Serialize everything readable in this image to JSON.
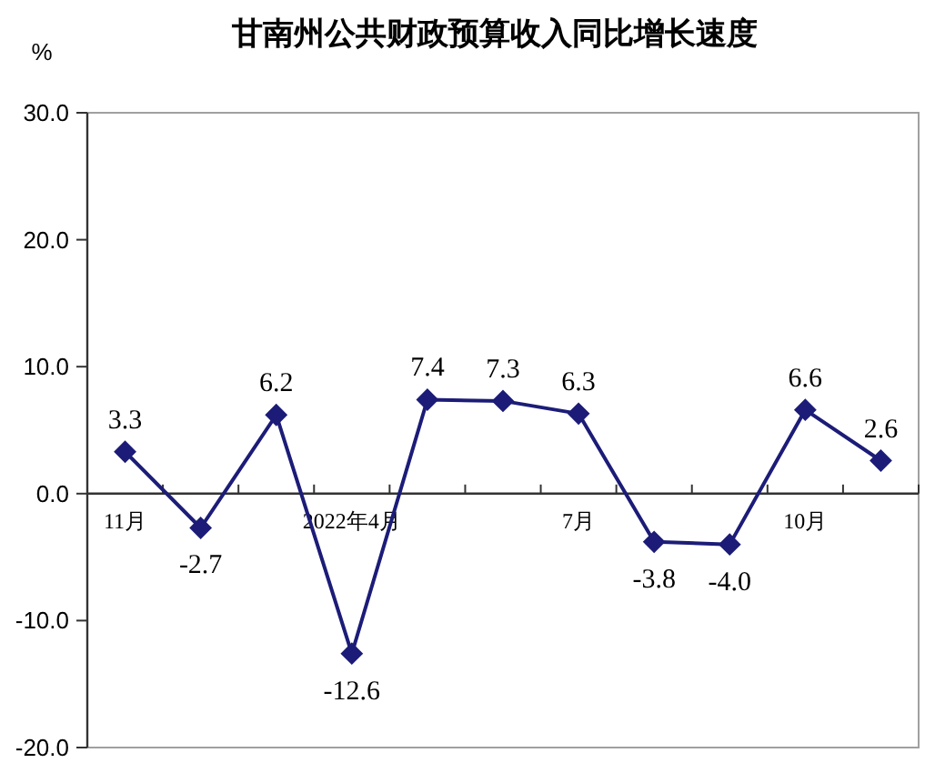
{
  "chart_data": {
    "type": "line",
    "title": "甘南州公共财政预算收入同比增长速度",
    "ylabel": "%",
    "categories": [
      "11月",
      null,
      null,
      "2022年4月",
      null,
      null,
      "7月",
      null,
      null,
      "10月",
      null
    ],
    "series": [
      {
        "color": "#1c1c78",
        "values": [
          3.3,
          -2.7,
          6.2,
          -12.6,
          7.4,
          7.3,
          6.3,
          -3.8,
          -4.0,
          6.6,
          2.6
        ],
        "value_labels": [
          "3.3",
          "-2.7",
          "6.2",
          "-12.6",
          "7.4",
          "7.3",
          "6.3",
          "-3.8",
          "-4.0",
          "6.6",
          "2.6"
        ]
      }
    ],
    "ylim": [
      -20,
      30
    ],
    "yticks": [
      {
        "value": 30,
        "label": "30.0"
      },
      {
        "value": 20,
        "label": "20.0"
      },
      {
        "value": 10,
        "label": "10.0"
      },
      {
        "value": 0,
        "label": "0.0"
      },
      {
        "value": -10,
        "label": "-10.0"
      },
      {
        "value": -20,
        "label": "-20.0"
      }
    ],
    "marker": "diamond",
    "line_style": "solid"
  }
}
